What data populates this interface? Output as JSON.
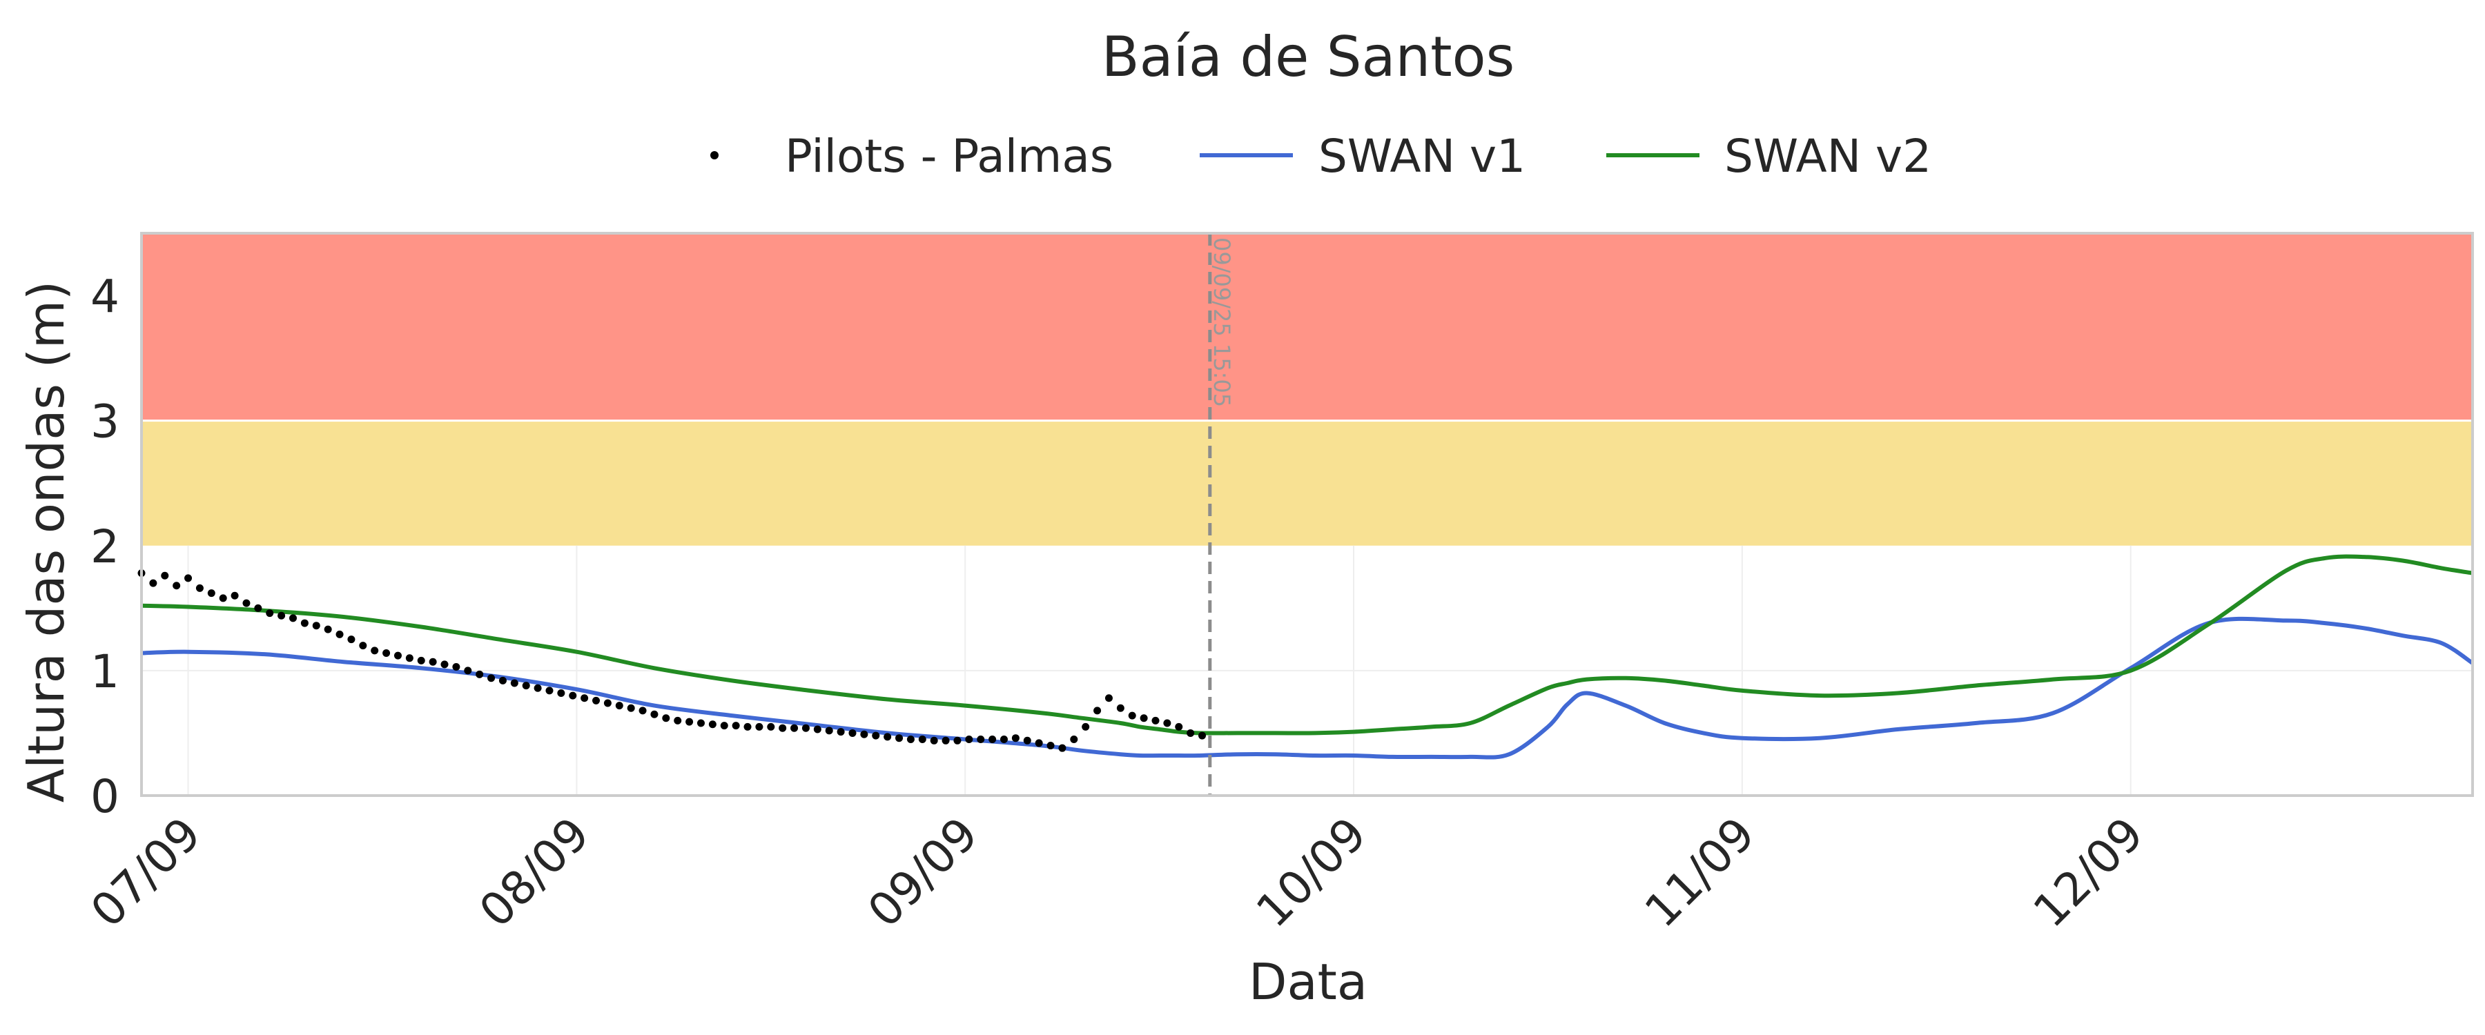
{
  "chart_data": {
    "type": "line",
    "title": "Baía de Santos",
    "xlabel": "Data",
    "ylabel": "Altura das ondas (m)",
    "x_ticks": [
      {
        "t": 0.0,
        "label": "07/09"
      },
      {
        "t": 1.0,
        "label": "08/09"
      },
      {
        "t": 2.0,
        "label": "09/09"
      },
      {
        "t": 3.0,
        "label": "10/09"
      },
      {
        "t": 4.0,
        "label": "11/09"
      },
      {
        "t": 5.0,
        "label": "12/09"
      }
    ],
    "xlim": [
      -0.12,
      5.88
    ],
    "ylim": [
      0,
      4.5
    ],
    "y_ticks": [
      0,
      1,
      2,
      3,
      4
    ],
    "grid": true,
    "legend_position": "top-center",
    "bands": [
      {
        "from": 2,
        "to": 3,
        "color": "#f8e193"
      },
      {
        "from": 3,
        "to": 4.5,
        "color": "#ff9487"
      }
    ],
    "vline": {
      "t": 2.63,
      "label": "09/09/25 15:05",
      "color": "#8c8c8c"
    },
    "series": [
      {
        "name": "Pilots - Palmas",
        "kind": "scatter",
        "color": "#000000",
        "x": [
          -0.12,
          -0.09,
          -0.06,
          -0.03,
          0.0,
          0.03,
          0.06,
          0.09,
          0.12,
          0.15,
          0.18,
          0.21,
          0.24,
          0.27,
          0.3,
          0.33,
          0.36,
          0.39,
          0.42,
          0.45,
          0.48,
          0.51,
          0.54,
          0.57,
          0.6,
          0.63,
          0.66,
          0.69,
          0.72,
          0.75,
          0.78,
          0.81,
          0.84,
          0.87,
          0.9,
          0.93,
          0.96,
          0.99,
          1.02,
          1.05,
          1.08,
          1.11,
          1.14,
          1.17,
          1.2,
          1.23,
          1.26,
          1.29,
          1.32,
          1.35,
          1.38,
          1.41,
          1.44,
          1.47,
          1.5,
          1.53,
          1.56,
          1.59,
          1.62,
          1.65,
          1.68,
          1.71,
          1.74,
          1.77,
          1.8,
          1.83,
          1.86,
          1.89,
          1.92,
          1.95,
          1.98,
          2.01,
          2.04,
          2.07,
          2.1,
          2.13,
          2.16,
          2.19,
          2.22,
          2.25,
          2.28,
          2.31,
          2.34,
          2.37,
          2.4,
          2.43,
          2.46,
          2.49,
          2.52,
          2.55,
          2.58,
          2.61
        ],
        "y": [
          1.78,
          1.7,
          1.76,
          1.68,
          1.74,
          1.66,
          1.62,
          1.58,
          1.6,
          1.54,
          1.5,
          1.46,
          1.44,
          1.42,
          1.38,
          1.36,
          1.33,
          1.29,
          1.25,
          1.2,
          1.16,
          1.14,
          1.12,
          1.1,
          1.08,
          1.07,
          1.05,
          1.03,
          1.0,
          0.97,
          0.94,
          0.92,
          0.9,
          0.88,
          0.86,
          0.84,
          0.82,
          0.8,
          0.78,
          0.76,
          0.74,
          0.72,
          0.7,
          0.68,
          0.65,
          0.62,
          0.6,
          0.59,
          0.58,
          0.57,
          0.56,
          0.56,
          0.55,
          0.55,
          0.55,
          0.54,
          0.54,
          0.54,
          0.53,
          0.52,
          0.51,
          0.5,
          0.49,
          0.48,
          0.47,
          0.46,
          0.45,
          0.45,
          0.44,
          0.44,
          0.44,
          0.45,
          0.45,
          0.45,
          0.45,
          0.46,
          0.44,
          0.42,
          0.4,
          0.38,
          0.45,
          0.55,
          0.68,
          0.78,
          0.7,
          0.64,
          0.62,
          0.6,
          0.58,
          0.55,
          0.5,
          0.48
        ]
      },
      {
        "name": "SWAN v1",
        "kind": "line",
        "color": "#4169d4",
        "x": [
          -0.12,
          0.0,
          0.2,
          0.4,
          0.6,
          0.8,
          1.0,
          1.2,
          1.4,
          1.6,
          1.8,
          2.0,
          2.2,
          2.3,
          2.4,
          2.45,
          2.5,
          2.55,
          2.6,
          2.7,
          2.8,
          2.9,
          3.0,
          3.1,
          3.2,
          3.3,
          3.4,
          3.5,
          3.55,
          3.6,
          3.7,
          3.8,
          3.9,
          4.0,
          4.2,
          4.4,
          4.6,
          4.8,
          5.0,
          5.2,
          5.4,
          5.5,
          5.6,
          5.7,
          5.8,
          5.88
        ],
        "y": [
          1.14,
          1.15,
          1.13,
          1.07,
          1.02,
          0.95,
          0.85,
          0.72,
          0.64,
          0.57,
          0.5,
          0.45,
          0.4,
          0.36,
          0.33,
          0.32,
          0.32,
          0.32,
          0.32,
          0.33,
          0.33,
          0.32,
          0.32,
          0.31,
          0.31,
          0.31,
          0.33,
          0.55,
          0.73,
          0.82,
          0.72,
          0.58,
          0.5,
          0.46,
          0.46,
          0.53,
          0.58,
          0.66,
          1.02,
          1.38,
          1.4,
          1.38,
          1.34,
          1.28,
          1.22,
          1.06
        ]
      },
      {
        "name": "SWAN v2",
        "kind": "line",
        "color": "#228b22",
        "x": [
          -0.12,
          0.0,
          0.2,
          0.4,
          0.6,
          0.8,
          1.0,
          1.2,
          1.4,
          1.6,
          1.8,
          2.0,
          2.2,
          2.3,
          2.4,
          2.45,
          2.5,
          2.55,
          2.6,
          2.7,
          2.8,
          2.9,
          3.0,
          3.1,
          3.2,
          3.3,
          3.4,
          3.5,
          3.55,
          3.6,
          3.7,
          3.8,
          3.9,
          4.0,
          4.2,
          4.4,
          4.6,
          4.8,
          5.0,
          5.2,
          5.4,
          5.5,
          5.6,
          5.7,
          5.8,
          5.88
        ],
        "y": [
          1.52,
          1.51,
          1.48,
          1.43,
          1.35,
          1.25,
          1.15,
          1.02,
          0.92,
          0.84,
          0.77,
          0.72,
          0.66,
          0.62,
          0.58,
          0.55,
          0.53,
          0.51,
          0.5,
          0.5,
          0.5,
          0.5,
          0.51,
          0.53,
          0.55,
          0.58,
          0.72,
          0.86,
          0.9,
          0.93,
          0.94,
          0.92,
          0.88,
          0.84,
          0.8,
          0.82,
          0.88,
          0.93,
          1.0,
          1.37,
          1.8,
          1.9,
          1.91,
          1.88,
          1.82,
          1.78
        ]
      }
    ]
  }
}
